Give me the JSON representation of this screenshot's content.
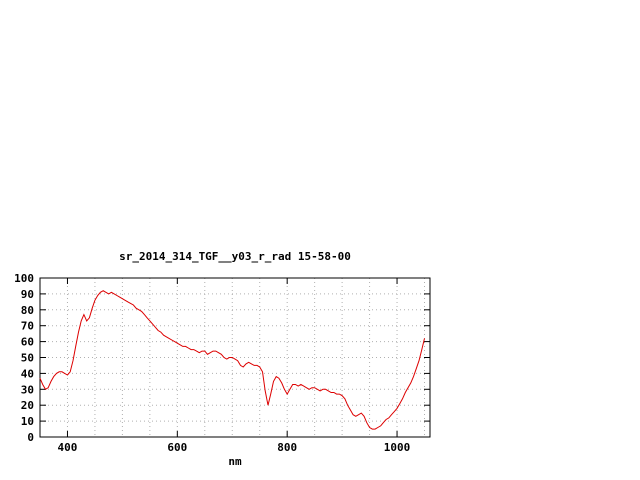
{
  "page": {
    "background_color": "#ffffff"
  },
  "chart_data": {
    "type": "line",
    "title": "sr_2014_314_TGF__y03_r_rad 15-58-00",
    "xlabel": "nm",
    "ylabel": "",
    "xlim": [
      350,
      1060
    ],
    "ylim": [
      0,
      100
    ],
    "xticks_labeled": [
      400,
      600,
      800,
      1000
    ],
    "xgrid_interval": 50,
    "ytick_interval": 10,
    "yticks_labeled": [
      0,
      10,
      20,
      30,
      40,
      50,
      60,
      70,
      80,
      90,
      100
    ],
    "grid": true,
    "grid_color": "#b0b0b0",
    "frame_color": "#000000",
    "line_color": "#dd0000",
    "legend_position": "none",
    "series": [
      {
        "name": "sr_2014_314_TGF__y03_r_rad",
        "x": [
          350,
          355,
          360,
          365,
          370,
          375,
          380,
          385,
          390,
          395,
          400,
          405,
          410,
          415,
          420,
          425,
          430,
          435,
          440,
          445,
          450,
          455,
          460,
          465,
          470,
          475,
          480,
          485,
          490,
          495,
          500,
          505,
          510,
          515,
          520,
          525,
          530,
          535,
          540,
          545,
          550,
          555,
          560,
          565,
          570,
          575,
          580,
          585,
          590,
          595,
          600,
          605,
          610,
          615,
          620,
          625,
          630,
          635,
          640,
          645,
          650,
          655,
          660,
          665,
          670,
          675,
          680,
          685,
          690,
          695,
          700,
          705,
          710,
          715,
          720,
          725,
          730,
          735,
          740,
          745,
          750,
          755,
          760,
          765,
          770,
          775,
          780,
          785,
          790,
          795,
          800,
          805,
          810,
          815,
          820,
          825,
          830,
          835,
          840,
          845,
          850,
          855,
          860,
          865,
          870,
          875,
          880,
          885,
          890,
          895,
          900,
          905,
          910,
          915,
          920,
          925,
          930,
          935,
          940,
          945,
          950,
          955,
          960,
          965,
          970,
          975,
          980,
          985,
          990,
          995,
          1000,
          1005,
          1010,
          1015,
          1020,
          1025,
          1030,
          1035,
          1040,
          1045,
          1050
        ],
        "y": [
          37,
          33,
          30,
          31,
          35,
          38,
          40,
          41,
          41,
          40,
          39,
          41,
          48,
          57,
          66,
          73,
          77,
          73,
          75,
          81,
          86,
          89,
          91,
          92,
          91,
          90,
          91,
          90,
          89,
          88,
          87,
          86,
          85,
          84,
          83,
          81,
          80,
          79,
          77,
          75,
          73,
          71,
          69,
          67,
          66,
          64,
          63,
          62,
          61,
          60,
          59,
          58,
          57,
          57,
          56,
          55,
          55,
          54,
          53,
          54,
          54,
          52,
          53,
          54,
          54,
          53,
          52,
          50,
          49,
          50,
          50,
          49,
          48,
          45,
          44,
          46,
          47,
          46,
          45,
          45,
          44,
          41,
          29,
          20,
          27,
          35,
          38,
          37,
          34,
          30,
          27,
          30,
          33,
          33,
          32,
          33,
          32,
          31,
          30,
          31,
          31,
          30,
          29,
          30,
          30,
          29,
          28,
          28,
          27,
          27,
          26,
          24,
          20,
          17,
          14,
          13,
          14,
          15,
          13,
          9,
          6,
          5,
          5,
          6,
          7,
          9,
          11,
          12,
          14,
          16,
          18,
          21,
          24,
          28,
          31,
          34,
          38,
          43,
          48,
          55,
          62
        ]
      }
    ]
  }
}
